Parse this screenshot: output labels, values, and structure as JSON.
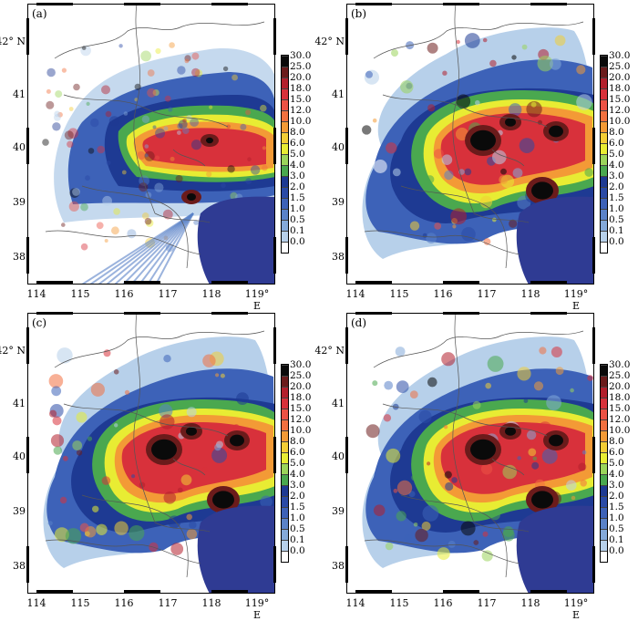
{
  "panels": [
    {
      "label": "(a)",
      "style": "observed"
    },
    {
      "label": "(b)",
      "style": "smooth"
    },
    {
      "label": "(c)",
      "style": "smooth"
    },
    {
      "label": "(d)",
      "style": "smooth"
    }
  ],
  "latitude_labels": [
    "42° N",
    "41",
    "40",
    "39",
    "38"
  ],
  "longitude_labels": [
    "114",
    "115",
    "116",
    "117",
    "118",
    "119° E"
  ],
  "colorbar": {
    "levels": [
      "30.0",
      "25.0",
      "20.0",
      "18.0",
      "15.0",
      "12.0",
      "10.0",
      "8.0",
      "6.0",
      "5.0",
      "4.0",
      "3.0",
      "2.0",
      "1.5",
      "1.0",
      "0.5",
      "0.1",
      "0.0"
    ],
    "colors": [
      "#0a0a0a",
      "#6b1b1b",
      "#b31f2c",
      "#d8313b",
      "#ec5245",
      "#f2703f",
      "#f39a36",
      "#f3cd35",
      "#e8ec33",
      "#9bd45b",
      "#4aa84f",
      "#1e3a93",
      "#2a4aa6",
      "#3d62b8",
      "#5a82c8",
      "#84a9d9",
      "#b7d0ea",
      "#ffffff"
    ]
  },
  "colors": {
    "sea": "#2f3b93",
    "border_line": "#555555"
  }
}
